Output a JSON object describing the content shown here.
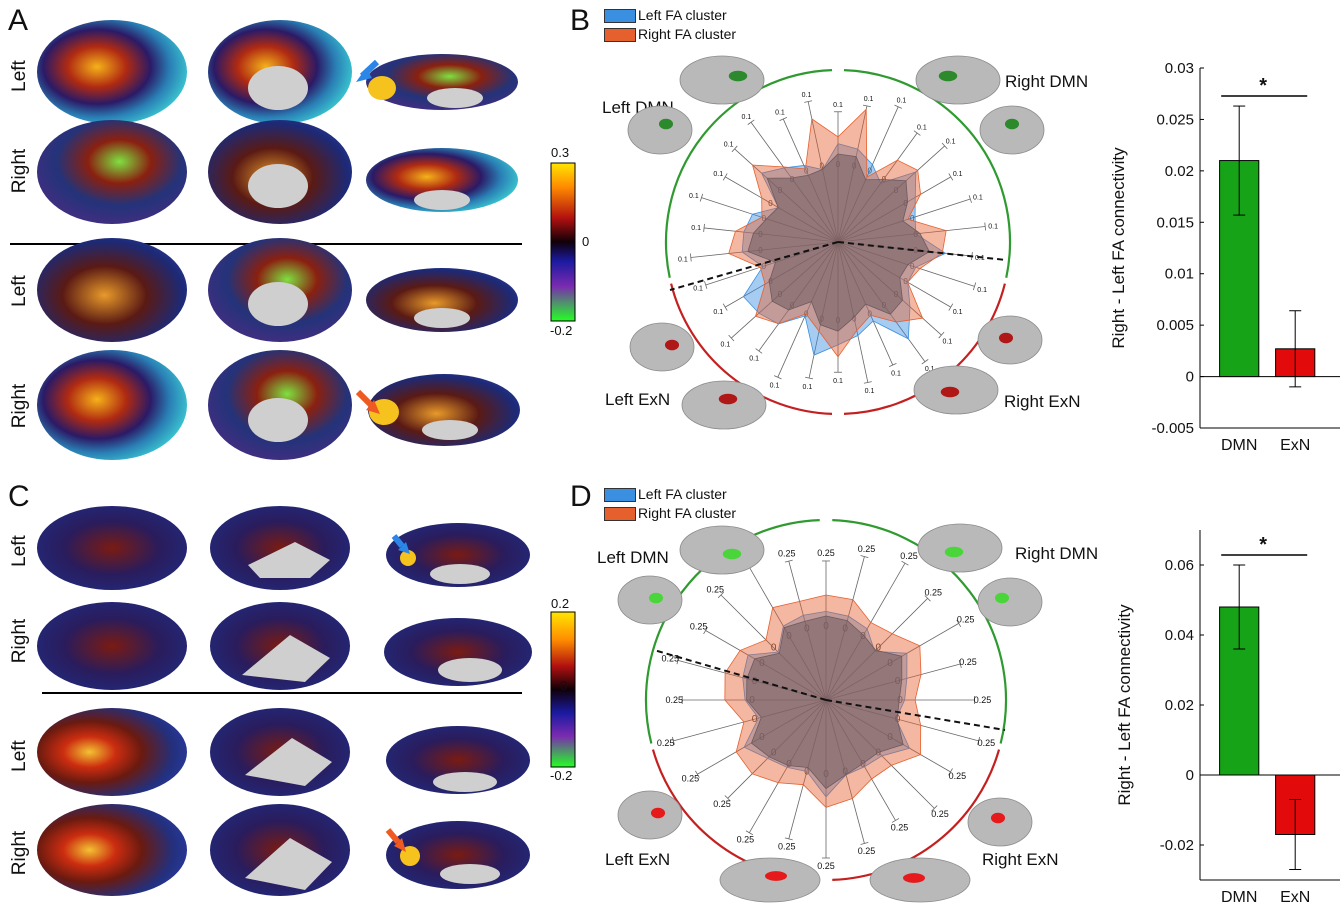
{
  "panels": {
    "A": {
      "letter": "A",
      "row_labels": [
        "Left",
        "Right",
        "Left",
        "Right"
      ],
      "colorbar": {
        "max": "0.3",
        "mid": "0",
        "min": "-0.2"
      }
    },
    "B": {
      "letter": "B",
      "legend": [
        "Left FA cluster",
        "Right FA cluster"
      ],
      "legend_colors": [
        "#3a8fe0",
        "#e6602e"
      ],
      "network_labels": [
        "Left DMN",
        "Right DMN",
        "Left ExN",
        "Right ExN"
      ],
      "radar_tick": "0.1",
      "radar_zero": "0",
      "chart": {
        "type": "bar",
        "ylabel": "Right - Left FA connectivity",
        "categories": [
          "DMN",
          "ExN"
        ],
        "values": [
          0.021,
          0.0027
        ],
        "errors": [
          0.0053,
          0.0037
        ],
        "ylim": [
          -0.005,
          0.03
        ],
        "ticks": [
          "0.03",
          "0.025",
          "0.02",
          "0.015",
          "0.01",
          "0.005",
          "0",
          "-0.005"
        ],
        "tick_values": [
          0.03,
          0.025,
          0.02,
          0.015,
          0.01,
          0.005,
          0,
          -0.005
        ],
        "significance": "*",
        "colors": [
          "#17a317",
          "#e20a0a"
        ]
      }
    },
    "C": {
      "letter": "C",
      "row_labels": [
        "Left",
        "Right",
        "Left",
        "Right"
      ],
      "colorbar": {
        "max": "0.2",
        "mid": "0",
        "min": "-0.2"
      }
    },
    "D": {
      "letter": "D",
      "legend": [
        "Left FA cluster",
        "Right FA cluster"
      ],
      "legend_colors": [
        "#3a8fe0",
        "#e6602e"
      ],
      "network_labels": [
        "Left DMN",
        "Right DMN",
        "Left ExN",
        "Right ExN"
      ],
      "radar_tick": "0.25",
      "radar_zero": "0",
      "chart": {
        "type": "bar",
        "ylabel": "Right - Left FA connectivity",
        "categories": [
          "DMN",
          "ExN"
        ],
        "values": [
          0.048,
          -0.017
        ],
        "errors": [
          0.012,
          0.01
        ],
        "ylim": [
          -0.03,
          0.07
        ],
        "ticks": [
          "0.06",
          "0.04",
          "0.02",
          "0",
          "-0.02"
        ],
        "tick_values": [
          0.06,
          0.04,
          0.02,
          0,
          -0.02
        ],
        "significance": "*",
        "colors": [
          "#17a317",
          "#e20a0a"
        ]
      }
    }
  }
}
